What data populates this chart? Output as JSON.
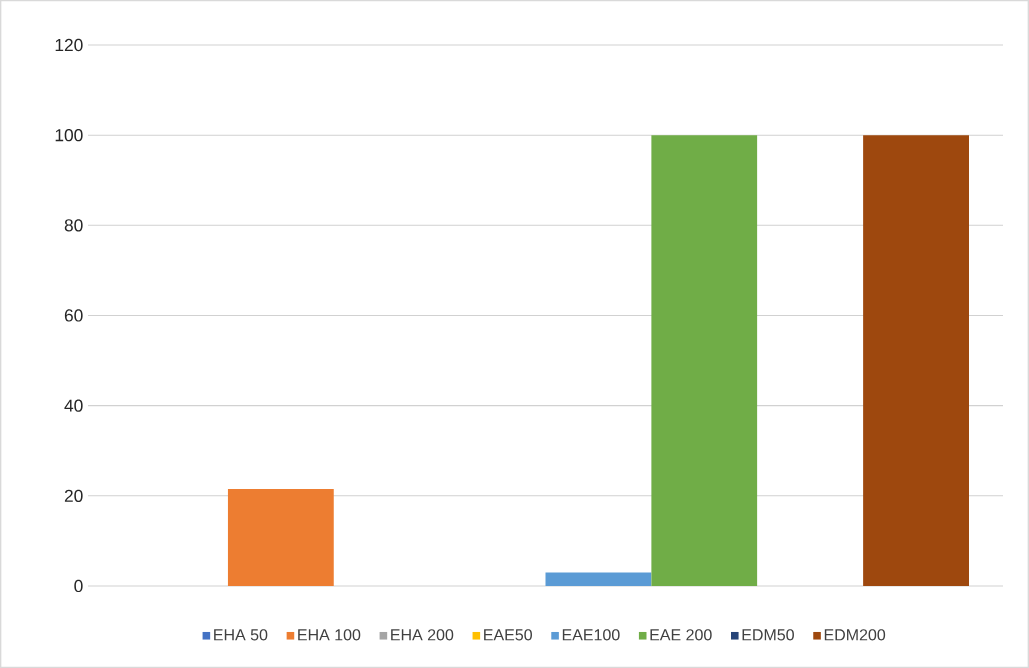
{
  "chart_data": {
    "type": "bar",
    "categories": [
      null
    ],
    "series": [
      {
        "name": "EHA 50",
        "color": "#4472c4",
        "values": [
          0
        ]
      },
      {
        "name": "EHA 100",
        "color": "#ed7d31",
        "values": [
          21.5
        ]
      },
      {
        "name": "EHA 200",
        "color": "#a5a5a5",
        "values": [
          0
        ]
      },
      {
        "name": "EAE50",
        "color": "#ffc000",
        "values": [
          0
        ]
      },
      {
        "name": "EAE100",
        "color": "#5b9bd5",
        "values": [
          3
        ]
      },
      {
        "name": "EAE 200",
        "color": "#70ad47",
        "values": [
          100
        ]
      },
      {
        "name": "EDM50",
        "color": "#264478",
        "values": [
          0
        ]
      },
      {
        "name": "EDM200",
        "color": "#9e480e",
        "values": [
          100
        ]
      }
    ],
    "ylim": [
      0,
      120
    ],
    "yticks": [
      0,
      20,
      40,
      60,
      80,
      100,
      120
    ],
    "grid": "y",
    "legend": "bottom"
  }
}
